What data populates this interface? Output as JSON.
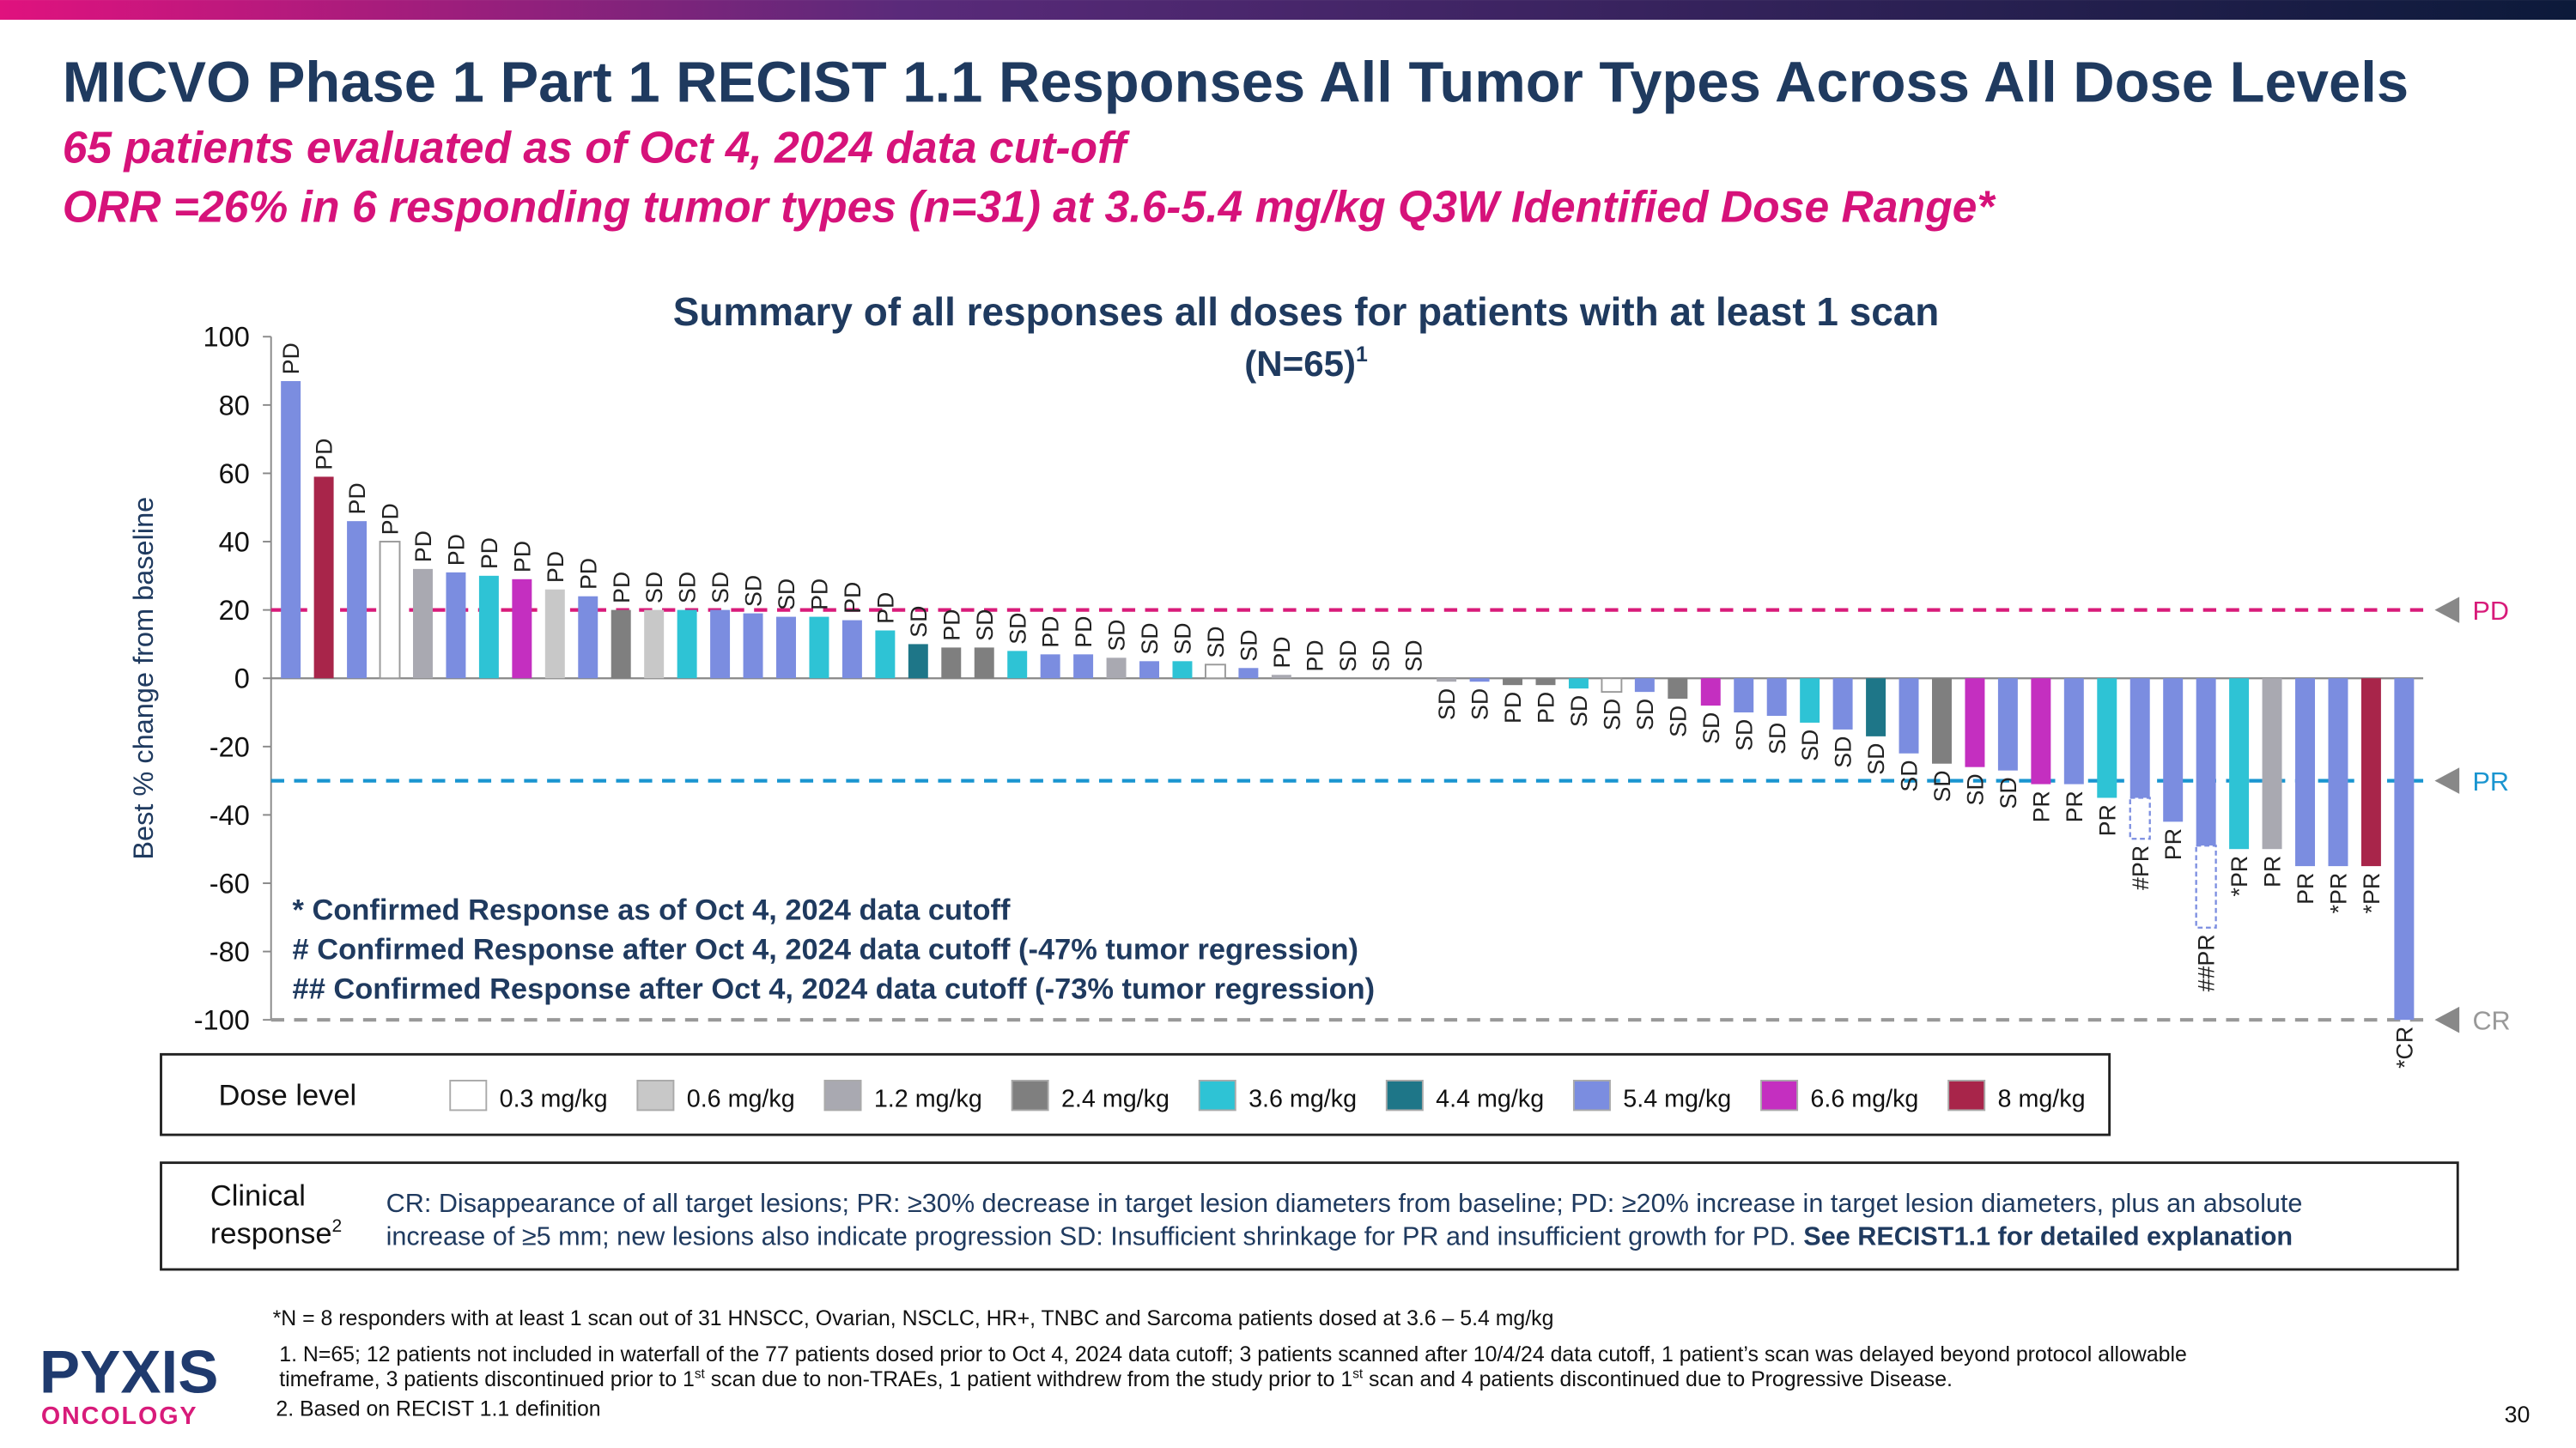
{
  "header": {
    "title": "MICVO Phase 1 Part 1 RECIST 1.1 Responses All Tumor Types Across All Dose Levels",
    "subtitles": [
      "65 patients evaluated as of Oct 4, 2024 data cut-off",
      "ORR =26% in 6 responding tumor types (n=31) at 3.6-5.4 mg/kg Q3W Identified Dose Range*"
    ]
  },
  "chart_data": {
    "type": "bar",
    "title": "Summary of all responses all doses for patients with at least 1 scan",
    "subtitle": "(N=65)",
    "subtitle_sup": "1",
    "y_label": "Best % change from baseline",
    "ylim": [
      -100,
      100
    ],
    "yticks": [
      100,
      80,
      60,
      40,
      20,
      0,
      -20,
      -40,
      -60,
      -80,
      -100
    ],
    "values": [
      87,
      59,
      46,
      40,
      32,
      31,
      30,
      29,
      26,
      24,
      20,
      20,
      20,
      20,
      19,
      18,
      18,
      17,
      14,
      10,
      9,
      9,
      8,
      7,
      7,
      6,
      5,
      5,
      4,
      3,
      1,
      0,
      0,
      0,
      0,
      -1,
      -1,
      -2,
      -2,
      -3,
      -4,
      -4,
      -6,
      -8,
      -10,
      -11,
      -13,
      -15,
      -17,
      -22,
      -25,
      -26,
      -27,
      -31,
      -31,
      -35,
      -35,
      -42,
      -49,
      -50,
      -50,
      -55,
      -55,
      -55,
      -100
    ],
    "post_cutoff_values": [
      null,
      null,
      null,
      null,
      null,
      null,
      null,
      null,
      null,
      null,
      null,
      null,
      null,
      null,
      null,
      null,
      null,
      null,
      null,
      null,
      null,
      null,
      null,
      null,
      null,
      null,
      null,
      null,
      null,
      null,
      null,
      null,
      null,
      null,
      null,
      null,
      null,
      null,
      null,
      null,
      null,
      null,
      null,
      null,
      null,
      null,
      null,
      null,
      null,
      null,
      null,
      null,
      null,
      null,
      null,
      null,
      -47,
      null,
      -73,
      null,
      null,
      null,
      null,
      null,
      null
    ],
    "responses": [
      "PD",
      "PD",
      "PD",
      "PD",
      "PD",
      "PD",
      "PD",
      "PD",
      "PD",
      "PD",
      "PD",
      "SD",
      "SD",
      "SD",
      "SD",
      "SD",
      "PD",
      "PD",
      "PD",
      "SD",
      "PD",
      "SD",
      "SD",
      "PD",
      "PD",
      "SD",
      "SD",
      "SD",
      "SD",
      "SD",
      "PD",
      "PD",
      "SD",
      "SD",
      "SD",
      "SD",
      "SD",
      "PD",
      "PD",
      "SD",
      "SD",
      "SD",
      "SD",
      "SD",
      "SD",
      "SD",
      "SD",
      "SD",
      "SD",
      "SD",
      "SD",
      "SD",
      "SD",
      "PR",
      "PR",
      "PR",
      "#PR",
      "PR",
      "##PR",
      "*PR",
      "PR",
      "PR",
      "*PR",
      "*PR",
      "*CR"
    ],
    "doses": [
      "5.4 mg/kg",
      "8 mg/kg",
      "5.4 mg/kg",
      "0.3 mg/kg",
      "1.2 mg/kg",
      "5.4 mg/kg",
      "3.6 mg/kg",
      "6.6 mg/kg",
      "0.6 mg/kg",
      "5.4 mg/kg",
      "2.4 mg/kg",
      "0.6 mg/kg",
      "3.6 mg/kg",
      "5.4 mg/kg",
      "5.4 mg/kg",
      "5.4 mg/kg",
      "3.6 mg/kg",
      "5.4 mg/kg",
      "3.6 mg/kg",
      "4.4 mg/kg",
      "2.4 mg/kg",
      "2.4 mg/kg",
      "3.6 mg/kg",
      "5.4 mg/kg",
      "5.4 mg/kg",
      "1.2 mg/kg",
      "5.4 mg/kg",
      "3.6 mg/kg",
      "0.3 mg/kg",
      "5.4 mg/kg",
      "1.2 mg/kg",
      "5.4 mg/kg",
      "5.4 mg/kg",
      "5.4 mg/kg",
      "5.4 mg/kg",
      "1.2 mg/kg",
      "5.4 mg/kg",
      "2.4 mg/kg",
      "2.4 mg/kg",
      "3.6 mg/kg",
      "0.3 mg/kg",
      "5.4 mg/kg",
      "2.4 mg/kg",
      "6.6 mg/kg",
      "5.4 mg/kg",
      "5.4 mg/kg",
      "3.6 mg/kg",
      "5.4 mg/kg",
      "4.4 mg/kg",
      "5.4 mg/kg",
      "2.4 mg/kg",
      "6.6 mg/kg",
      "5.4 mg/kg",
      "6.6 mg/kg",
      "5.4 mg/kg",
      "3.6 mg/kg",
      "5.4 mg/kg",
      "5.4 mg/kg",
      "5.4 mg/kg",
      "3.6 mg/kg",
      "1.2 mg/kg",
      "5.4 mg/kg",
      "5.4 mg/kg",
      "8 mg/kg",
      "5.4 mg/kg"
    ],
    "reference_lines": [
      {
        "value": 20,
        "label": "PD",
        "color": "#d81b7a"
      },
      {
        "value": -30,
        "label": "PR",
        "color": "#1a95d0"
      },
      {
        "value": -100,
        "label": "CR",
        "color": "#999999"
      }
    ],
    "notes": [
      "* Confirmed Response as of Oct 4, 2024 data cutoff",
      "# Confirmed Response after Oct 4, 2024 data cutoff (-47% tumor regression)",
      "## Confirmed Response after Oct 4, 2024 data cutoff (-73% tumor regression)"
    ],
    "legend": {
      "title": "Dose level",
      "items": [
        {
          "name": "0.3 mg/kg",
          "color": "#ffffff"
        },
        {
          "name": "0.6 mg/kg",
          "color": "#c8c8c8"
        },
        {
          "name": "1.2 mg/kg",
          "color": "#a9a9b1"
        },
        {
          "name": "2.4 mg/kg",
          "color": "#7f7f7f"
        },
        {
          "name": "3.6 mg/kg",
          "color": "#2ec3d5"
        },
        {
          "name": "4.4 mg/kg",
          "color": "#1e7688"
        },
        {
          "name": "5.4 mg/kg",
          "color": "#7b8de0"
        },
        {
          "name": "6.6 mg/kg",
          "color": "#c42fc0"
        },
        {
          "name": "8 mg/kg",
          "color": "#a8254a"
        }
      ]
    }
  },
  "clinical_response": {
    "label": [
      "Clinical",
      "response"
    ],
    "label_sup": "2",
    "lines": [
      "CR: Disappearance of all target lesions; PR: ≥30% decrease in target lesion diameters from baseline; PD: ≥20% increase in target lesion diameters, plus an absolute",
      "increase of ≥5 mm; new lesions also indicate progression SD: Insufficient shrinkage for PR and insufficient growth for PD. "
    ],
    "emphasis": "See RECIST1.1 for detailed explanation"
  },
  "footnotes": {
    "star": "*N = 8 responders with at least 1 scan out of 31 HNSCC, Ovarian, NSCLC, HR+, TNBC and Sarcoma patients dosed at 3.6 – 5.4 mg/kg",
    "note1_line1": "1.  N=65; 12 patients not included in waterfall of the 77 patients dosed prior to Oct 4, 2024 data cutoff; 3 patients scanned after 10/4/24 data cutoff, 1 patient’s scan was delayed beyond protocol allowable",
    "note1_line2": [
      "timeframe, 3 patients discontinued prior to 1",
      "st",
      " scan due to non-TRAEs, 1 patient withdrew from the study prior to 1",
      "st",
      " scan and 4 patients discontinued due to Progressive Disease."
    ],
    "note2": "2. Based on RECIST 1.1 definition"
  },
  "logo": {
    "name": "PYXIS",
    "sub": "ONCOLOGY"
  },
  "page_number": "30"
}
